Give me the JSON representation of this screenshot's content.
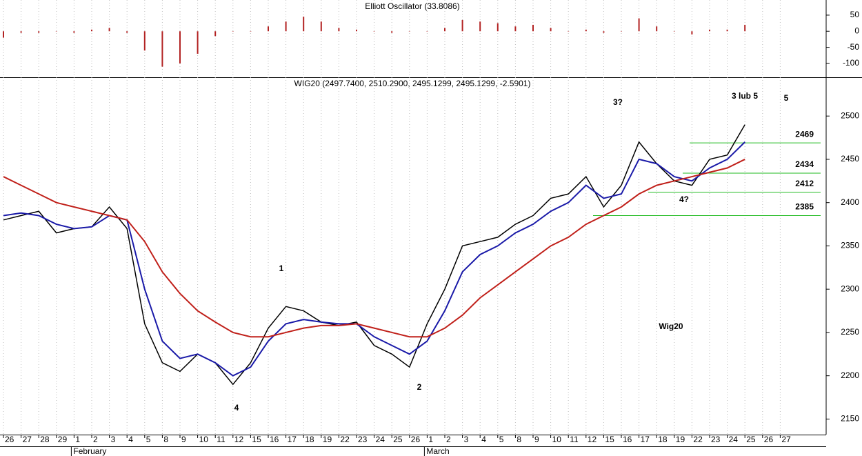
{
  "chart_data": [
    {
      "type": "bar",
      "title": "Elliott Oscillator (33.8086)",
      "color": "#b22222",
      "values": [
        -20,
        -5,
        -5,
        0,
        -5,
        5,
        10,
        -5,
        -60,
        -110,
        -100,
        -70,
        -15,
        0,
        0,
        15,
        30,
        45,
        30,
        10,
        5,
        0,
        -5,
        0,
        0,
        10,
        35,
        30,
        25,
        15,
        20,
        10,
        0,
        5,
        -5,
        0,
        40,
        15,
        0,
        -10,
        5,
        5,
        20,
        null,
        null
      ],
      "ylim": [
        -143,
        97
      ],
      "yticks": [
        50,
        0,
        -50,
        -100
      ]
    },
    {
      "type": "line",
      "title": "WIG20 (2497.7400, 2510.2900, 2495.1299, 2495.1299, -2.5901)",
      "categories": [
        "26",
        "27",
        "28",
        "29",
        "1",
        "2",
        "3",
        "4",
        "5",
        "8",
        "9",
        "10",
        "11",
        "12",
        "15",
        "16",
        "17",
        "18",
        "19",
        "22",
        "23",
        "24",
        "25",
        "26",
        "1",
        "2",
        "3",
        "4",
        "5",
        "8",
        "9",
        "10",
        "11",
        "12",
        "15",
        "16",
        "17",
        "18",
        "19",
        "22",
        "23",
        "24",
        "25",
        "26",
        "27"
      ],
      "months": [
        "February",
        "March"
      ],
      "series": [
        {
          "color": "#000000",
          "values": [
            2380,
            2385,
            2390,
            2365,
            2370,
            2372,
            2395,
            2370,
            2260,
            2215,
            2205,
            2225,
            2215,
            2190,
            2215,
            2255,
            2280,
            2275,
            2262,
            2258,
            2262,
            2235,
            2225,
            2210,
            2260,
            2300,
            2350,
            2355,
            2360,
            2375,
            2385,
            2405,
            2410,
            2430,
            2395,
            2420,
            2470,
            2445,
            2425,
            2420,
            2450,
            2455,
            2490,
            null,
            null
          ]
        },
        {
          "color": "#1a1aa8",
          "values": [
            2385,
            2388,
            2385,
            2375,
            2370,
            2372,
            2385,
            2380,
            2300,
            2240,
            2220,
            2225,
            2215,
            2200,
            2210,
            2240,
            2260,
            2265,
            2262,
            2260,
            2260,
            2245,
            2235,
            2225,
            2240,
            2275,
            2320,
            2340,
            2350,
            2365,
            2375,
            2390,
            2400,
            2420,
            2405,
            2410,
            2450,
            2445,
            2430,
            2425,
            2440,
            2450,
            2470,
            null,
            null
          ]
        },
        {
          "color": "#c0201a",
          "values": [
            2430,
            2420,
            2410,
            2400,
            2395,
            2390,
            2385,
            2380,
            2355,
            2320,
            2295,
            2275,
            2262,
            2250,
            2245,
            2245,
            2250,
            2255,
            2258,
            2258,
            2260,
            2255,
            2250,
            2245,
            2245,
            2255,
            2270,
            2290,
            2305,
            2320,
            2335,
            2350,
            2360,
            2375,
            2385,
            2395,
            2410,
            2420,
            2425,
            2430,
            2435,
            2440,
            2450,
            null,
            null
          ]
        }
      ],
      "levels": [
        2469,
        2434,
        2412,
        2385
      ],
      "level_color": "#22bb22",
      "annotations": [
        "1",
        "2",
        "3?",
        "4?",
        "3 lub 5",
        "4",
        "5",
        "Wig20"
      ],
      "ylim": [
        2132,
        2544
      ],
      "yticks": [
        2150,
        2200,
        2250,
        2300,
        2350,
        2400,
        2450,
        2500
      ]
    }
  ]
}
